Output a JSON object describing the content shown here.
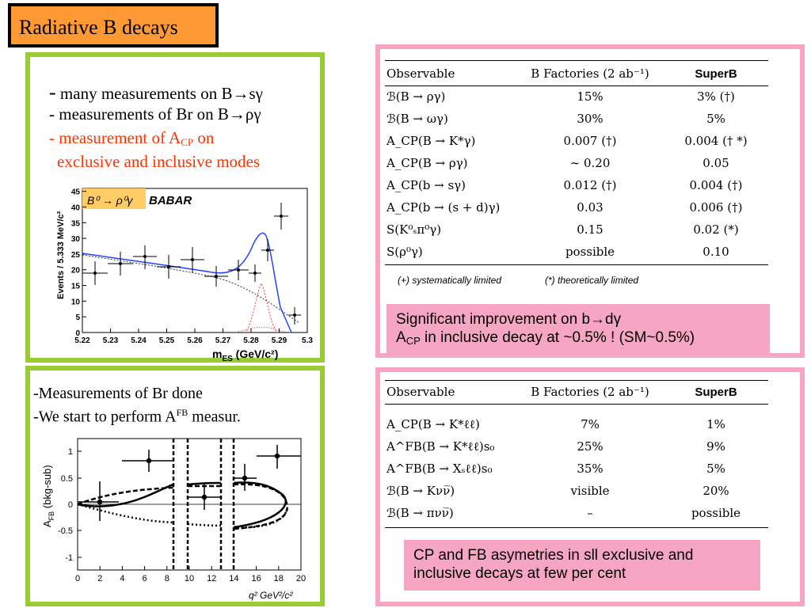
{
  "title": "Radiative B decays",
  "top_left": {
    "line1_dash": "-",
    "line1": "many measurements on  B→sγ",
    "line2": "- measurements of Br on B→ργ",
    "line3_pre": "- measurement of A",
    "line3_sub": "CP",
    "line3_post": " on",
    "line4": "exclusive and inclusive modes"
  },
  "plot1": {
    "label": "B⁰ → ρ⁰γ",
    "logo": "BABAR",
    "ylabel": "Events / 5.333 MeV/c²",
    "xlabel": "m",
    "xlabel_sub": "ES",
    "xlabel_post": " (GeV/c²)",
    "xticks": [
      "5.22",
      "5.23",
      "5.24",
      "5.25",
      "5.26",
      "5.27",
      "5.28",
      "5.29",
      "5.3"
    ],
    "yticks": [
      "0",
      "5",
      "10",
      "15",
      "20",
      "25",
      "30",
      "35",
      "40",
      "45"
    ]
  },
  "table1": {
    "headers": [
      "Observable",
      "B Factories (2 ab⁻¹)",
      "SuperB"
    ],
    "rows": [
      [
        "ℬ(B → ργ)",
        "15%",
        "3% (†)"
      ],
      [
        "ℬ(B → ωγ)",
        "30%",
        "5%"
      ],
      [
        "A_CP(B → K*γ)",
        "0.007 (†)",
        "0.004 († *)"
      ],
      [
        "A_CP(B → ργ)",
        "∼ 0.20",
        "0.05"
      ],
      [
        "A_CP(b → sγ)",
        "0.012 (†)",
        "0.004 (†)"
      ],
      [
        "A_CP(b → (s + d)γ)",
        "0.03",
        "0.006 (†)"
      ],
      [
        "S(K⁰ₛπ⁰γ)",
        "0.15",
        "0.02 (*)"
      ],
      [
        "S(ρ⁰γ)",
        "possible",
        "0.10"
      ]
    ],
    "note_left": "(+) systematically limited",
    "note_right": "(*) theoretically limited"
  },
  "callout1": {
    "line1": "Significant improvement on b→dγ",
    "line2_pre": "A",
    "line2_sub": "CP",
    "line2_post": " in inclusive decay at ~0.5% ! (SM~0.5%)"
  },
  "bottom_left": {
    "line1": "-Measurements of Br done",
    "line2_pre": "-We start to perform A",
    "line2_sup": "FB",
    "line2_post": "  measur."
  },
  "plot2": {
    "ylabel": "A",
    "ylabel_sub": "FB",
    "ylabel_post": " (bkg-sub)",
    "xlabel": "q²  GeV²/c²",
    "xticks": [
      "0",
      "2",
      "4",
      "6",
      "8",
      "10",
      "12",
      "14",
      "16",
      "18",
      "20"
    ],
    "yticks": [
      "1",
      "0.5",
      "0",
      "-0.5",
      "-1"
    ]
  },
  "table2": {
    "headers": [
      "Observable",
      "B Factories (2 ab⁻¹)",
      "SuperB"
    ],
    "rows": [
      [
        "A_CP(B → K*ℓℓ)",
        "7%",
        "1%"
      ],
      [
        "A^FB(B → K*ℓℓ)s₀",
        "25%",
        "9%"
      ],
      [
        "A^FB(B → Xₛℓℓ)s₀",
        "35%",
        "5%"
      ],
      [
        "ℬ(B → Kνν̅)",
        "visible",
        "20%"
      ],
      [
        "ℬ(B → πνν̅)",
        "–",
        "possible"
      ]
    ]
  },
  "callout2": {
    "line1": "CP and FB asymetries in sll exclusive and",
    "line2": "inclusive decays at few per cent"
  }
}
